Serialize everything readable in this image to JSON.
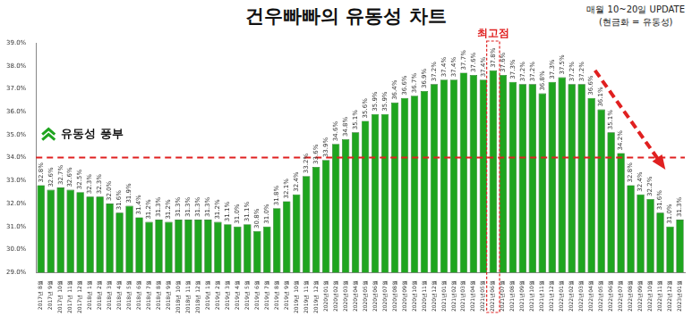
{
  "chart_data": {
    "type": "bar",
    "title": "건우빠빠의 유동성 차트",
    "notes": [
      "매월 10~20일 UPDATE",
      "(현금화 = 유동성)"
    ],
    "categories": [
      "2017년 8월",
      "2017년 9월",
      "2017년 10월",
      "2017년 11월",
      "2017년 12월",
      "2018년 1월",
      "2018년 2월",
      "2018년 3월",
      "2018년 4월",
      "2018년 5월",
      "2018년 6월",
      "2018년 7월",
      "2018년 8월",
      "2018년 9월",
      "2018년 10월",
      "2018년 11월",
      "2018년 12월",
      "2019년 1월",
      "2019년 2월",
      "2019년 3월",
      "2019년 4월",
      "2019년 5월",
      "2019년 6월",
      "2019년 7월",
      "2019년 8월",
      "2019년 9월",
      "2019년 10월",
      "2019년 11월",
      "2019년 12월",
      "2020년01월",
      "2020년02월",
      "2020년03월",
      "2020년04월",
      "2020년05월",
      "2020년06월",
      "2020년07월",
      "2020년08월",
      "2020년09월",
      "2020년10월",
      "2020년11월",
      "2020년12월",
      "2021년01월",
      "2021년02월",
      "2021년03월",
      "2021년04월",
      "2021년05월",
      "2021년06월",
      "2021년07월",
      "2021년08월",
      "2021년09월",
      "2021년10월",
      "2021년11월",
      "2021년12월",
      "2022년01월",
      "2022년02월",
      "2022년03월",
      "2022년04월",
      "2022년05월",
      "2022년06월",
      "2022년07월",
      "2022년08월",
      "2022년09월",
      "2022년10월",
      "2022년11월",
      "2022년12월",
      "2023년01월"
    ],
    "values": [
      32.8,
      32.6,
      32.7,
      32.6,
      32.5,
      32.3,
      32.3,
      32.0,
      31.6,
      31.9,
      31.4,
      31.2,
      31.3,
      31.2,
      31.3,
      31.3,
      31.3,
      31.3,
      31.2,
      31.1,
      31.0,
      31.1,
      30.8,
      31.0,
      31.8,
      32.1,
      32.4,
      33.2,
      33.6,
      33.9,
      34.6,
      34.8,
      35.1,
      35.6,
      35.9,
      35.9,
      36.4,
      36.6,
      36.7,
      36.9,
      37.2,
      37.4,
      37.4,
      37.7,
      37.6,
      37.4,
      37.8,
      37.6,
      37.3,
      37.2,
      37.2,
      36.8,
      37.3,
      37.5,
      37.2,
      37.2,
      36.6,
      36.1,
      35.1,
      34.2,
      32.8,
      32.4,
      32.2,
      31.6,
      31.0,
      31.3
    ],
    "value_labels": [
      "32.8%",
      "32.6%",
      "32.7%",
      "32.6%",
      "32.5%",
      "32.3%",
      "32.3%",
      "32.0%",
      "31.6%",
      "31.9%",
      "31.4%",
      "31.2%",
      "31.3%",
      "31.2%",
      "31.3%",
      "31.3%",
      "31.3%",
      "31.3%",
      "31.2%",
      "31.1%",
      "31.0%",
      "31.1%",
      "30.8%",
      "31.0%",
      "31.8%",
      "32.1%",
      "32.4%",
      "33.2%",
      "33.6%",
      "33.9%",
      "34.6%",
      "34.8%",
      "35.1%",
      "35.6%",
      "35.9%",
      "35.9%",
      "36.4%",
      "36.6%",
      "36.7%",
      "36.9%",
      "37.2%",
      "37.4%",
      "37.4%",
      "37.7%",
      "37.6%",
      "37.4%",
      "37.8%",
      "37.6%",
      "37.3%",
      "37.2%",
      "37.2%",
      "36.8%",
      "37.3%",
      "37.5%",
      "37.2%",
      "37.2%",
      "36.6%",
      "36.1%",
      "35.1%",
      "34.2%",
      "32.8%",
      "32.4%",
      "32.2%",
      "31.6%",
      "31.0%",
      "31.3%"
    ],
    "color": "#1fa51f",
    "ylim": [
      29,
      39
    ],
    "yticks": [
      {
        "value": 29,
        "label": "29.0%"
      },
      {
        "value": 30,
        "label": "30.0%"
      },
      {
        "value": 31,
        "label": "31.0%"
      },
      {
        "value": 32,
        "label": "32.0%"
      },
      {
        "value": 33,
        "label": "33.0%"
      },
      {
        "value": 34,
        "label": "34.0%"
      },
      {
        "value": 35,
        "label": "35.0%"
      },
      {
        "value": 36,
        "label": "36.0%"
      },
      {
        "value": 37,
        "label": "37.0%"
      },
      {
        "value": 38,
        "label": "38.0%"
      },
      {
        "value": 39,
        "label": "39.0%"
      }
    ],
    "grid": false,
    "data_labels": true,
    "hline": {
      "value": 34,
      "label": "유동성 풍부"
    },
    "peak": {
      "category": "2021년06월",
      "label": "최고점"
    }
  }
}
